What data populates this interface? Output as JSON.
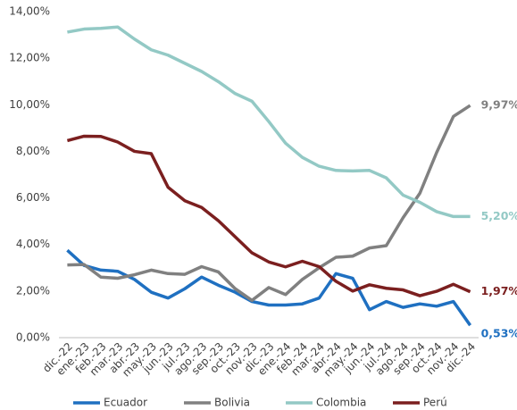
{
  "chart_data": {
    "type": "line",
    "categories": [
      "dic.-22",
      "ene.-23",
      "feb.-23",
      "mar.-23",
      "abr.-23",
      "may.-23",
      "jun.-23",
      "jul.-23",
      "ago.-23",
      "sep.-23",
      "oct.-23",
      "nov.-23",
      "dic.-23",
      "ene.-24",
      "feb.-24",
      "mar.-24",
      "abr.-24",
      "may.-24",
      "jun.-24",
      "jul.-24",
      "ago.-24",
      "sep.-24",
      "oct.-24",
      "nov.-24",
      "dic.-24"
    ],
    "ylim": [
      0,
      14
    ],
    "yticks": [
      {
        "value": 0,
        "label": "0,00%"
      },
      {
        "value": 2,
        "label": "2,00%"
      },
      {
        "value": 4,
        "label": "4,00%"
      },
      {
        "value": 6,
        "label": "6,00%"
      },
      {
        "value": 8,
        "label": "8,00%"
      },
      {
        "value": 10,
        "label": "10,00%"
      },
      {
        "value": 12,
        "label": "12,00%"
      },
      {
        "value": 14,
        "label": "14,00%"
      }
    ],
    "grid": false,
    "legend": "bottom",
    "series": [
      {
        "name": "Ecuador",
        "color": "#1f70c1",
        "values": [
          3.75,
          3.1,
          2.9,
          2.85,
          2.5,
          1.95,
          1.7,
          2.1,
          2.6,
          2.25,
          1.95,
          1.55,
          1.4,
          1.4,
          1.45,
          1.7,
          2.75,
          2.55,
          1.2,
          1.55,
          1.3,
          1.45,
          1.35,
          1.55,
          0.53
        ],
        "value_labels": [
          null,
          null,
          null,
          null,
          null,
          null,
          null,
          null,
          null,
          null,
          null,
          null,
          null,
          null,
          null,
          null,
          null,
          null,
          null,
          null,
          null,
          null,
          null,
          null,
          "0,53%"
        ]
      },
      {
        "name": "Bolivia",
        "color": "#808080",
        "values": [
          3.12,
          3.14,
          2.6,
          2.55,
          2.7,
          2.9,
          2.75,
          2.72,
          3.05,
          2.82,
          2.1,
          1.6,
          2.15,
          1.85,
          2.5,
          3.0,
          3.45,
          3.5,
          3.85,
          3.95,
          5.15,
          6.2,
          7.95,
          9.5,
          9.97
        ],
        "value_labels": [
          null,
          null,
          null,
          null,
          null,
          null,
          null,
          null,
          null,
          null,
          null,
          null,
          null,
          null,
          null,
          null,
          null,
          null,
          null,
          null,
          null,
          null,
          null,
          null,
          "9,97%"
        ]
      },
      {
        "name": "Colombia",
        "color": "#93c9c5",
        "values": [
          13.12,
          13.25,
          13.28,
          13.34,
          12.82,
          12.36,
          12.13,
          11.78,
          11.43,
          10.99,
          10.48,
          10.15,
          9.28,
          8.35,
          7.74,
          7.36,
          7.18,
          7.16,
          7.18,
          6.86,
          6.12,
          5.81,
          5.41,
          5.2,
          5.2
        ],
        "value_labels": [
          null,
          null,
          null,
          null,
          null,
          null,
          null,
          null,
          null,
          null,
          null,
          null,
          null,
          null,
          null,
          null,
          null,
          null,
          null,
          null,
          null,
          null,
          null,
          null,
          "5,20%"
        ]
      },
      {
        "name": "Perú",
        "color": "#7b1f1f",
        "values": [
          8.46,
          8.65,
          8.64,
          8.4,
          8.0,
          7.9,
          6.46,
          5.88,
          5.59,
          5.02,
          4.33,
          3.64,
          3.25,
          3.04,
          3.28,
          3.05,
          2.42,
          2.0,
          2.27,
          2.12,
          2.05,
          1.8,
          1.99,
          2.29,
          1.97
        ],
        "value_labels": [
          null,
          null,
          null,
          null,
          null,
          null,
          null,
          null,
          null,
          null,
          null,
          null,
          null,
          null,
          null,
          null,
          null,
          null,
          null,
          null,
          null,
          null,
          null,
          null,
          "1,97%"
        ]
      }
    ]
  }
}
